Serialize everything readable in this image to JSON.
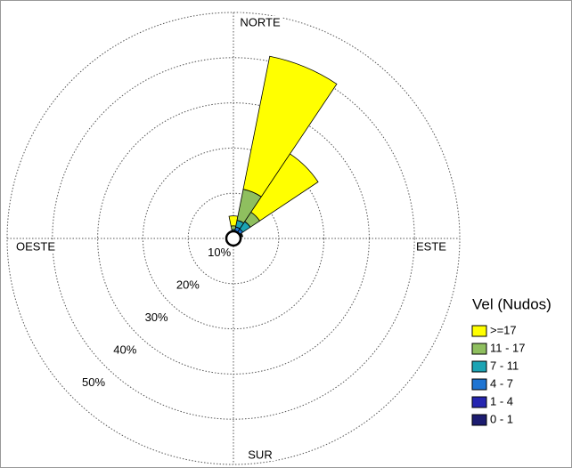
{
  "chart_data": {
    "type": "windrose",
    "categories": [
      "NORTE",
      null,
      null,
      null,
      "ESTE",
      null,
      null,
      null,
      "SUR",
      null,
      null,
      null,
      "OESTE",
      null,
      null,
      null
    ],
    "rlim": [
      0,
      50
    ],
    "rticks": [
      {
        "value": 10,
        "label": "10%"
      },
      {
        "value": 20,
        "label": "20%"
      },
      {
        "value": 30,
        "label": "30%"
      },
      {
        "value": 40,
        "label": "40%"
      },
      {
        "value": 50,
        "label": "50%"
      }
    ],
    "grid": true,
    "legend_title": "Vel (Nudos)",
    "legend": "right",
    "series": [
      {
        "name": "0 - 1",
        "color": "#1c1c70",
        "values": [
          0.4,
          0.6,
          0.5,
          0.4,
          0.3,
          0.3,
          0.3,
          0.3,
          0.3,
          0.3,
          0.3,
          0.3,
          0.4,
          0.4,
          0.4,
          0.4
        ]
      },
      {
        "name": "1 - 4",
        "color": "#2626b0",
        "values": [
          0.4,
          0.8,
          0.8,
          0.5,
          0.3,
          0.2,
          0.2,
          0.2,
          0.2,
          0.2,
          0.2,
          0.2,
          0.3,
          0.3,
          0.3,
          0.3
        ]
      },
      {
        "name": "4 - 7",
        "color": "#1e74d2",
        "values": [
          0.6,
          1.2,
          1.2,
          0.6,
          0.3,
          0.2,
          0.2,
          0.1,
          0.1,
          0.1,
          0.1,
          0.2,
          0.2,
          0.2,
          0.2,
          0.3
        ]
      },
      {
        "name": "7 - 11",
        "color": "#1ca4b4",
        "values": [
          0.6,
          1.5,
          2.0,
          0.4,
          0.1,
          0,
          0,
          0,
          0,
          0,
          0,
          0,
          0,
          0,
          0.1,
          0.2
        ]
      },
      {
        "name": "11 - 17",
        "color": "#8fbf5f",
        "values": [
          0.8,
          7,
          2.5,
          0.2,
          0,
          0,
          0,
          0,
          0,
          0,
          0,
          0,
          0,
          0,
          0,
          0
        ]
      },
      {
        "name": ">=17",
        "color": "#ffff00",
        "values": [
          2.2,
          30,
          15.5,
          0,
          0,
          0,
          0,
          0,
          0,
          0,
          0,
          0,
          0,
          0,
          0,
          0
        ]
      }
    ]
  }
}
